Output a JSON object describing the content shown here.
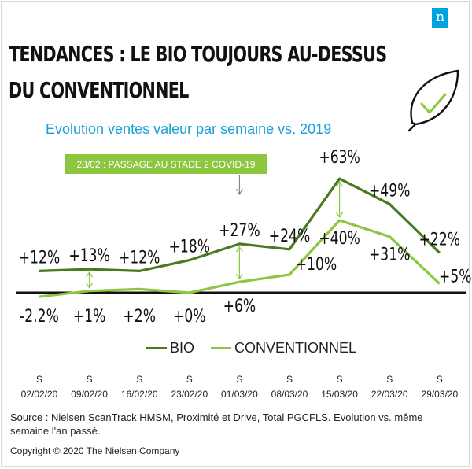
{
  "brand": {
    "logo_text": "n",
    "accent": "#00a3e0",
    "leaf_icon": "leaf-check-icon"
  },
  "title": {
    "line1": "TENDANCES : LE BIO TOUJOURS AU-DESSUS",
    "line2": "DU CONVENTIONNEL"
  },
  "subtitle": "Evolution ventes valeur par semaine vs. 2019",
  "chart_data": {
    "type": "line",
    "title": "TENDANCES : LE BIO TOUJOURS AU-DESSUS DU CONVENTIONNEL",
    "subtitle": "Evolution ventes valeur par semaine vs. 2019",
    "x_prefix": "S",
    "categories": [
      "02/02/20",
      "09/02/20",
      "16/02/20",
      "23/02/20",
      "01/03/20",
      "08/03/20",
      "15/03/20",
      "22/03/20",
      "29/03/20"
    ],
    "series": [
      {
        "name": "BIO",
        "color": "#4a7a1f",
        "values": [
          12,
          13,
          12,
          18,
          27,
          24,
          63,
          49,
          22
        ],
        "labels": [
          "+12%",
          "+13%",
          "+12%",
          "+18%",
          "+27%",
          "+24%",
          "+63%",
          "+49%",
          "+22%"
        ]
      },
      {
        "name": "CONVENTIONNEL",
        "color": "#8dc63f",
        "values": [
          -2.2,
          1,
          2,
          0,
          6,
          10,
          40,
          31,
          5
        ],
        "labels": [
          "-2.2%",
          "+1%",
          "+2%",
          "+0%",
          "+6%",
          "+10%",
          "+40%",
          "+31%",
          "+5%"
        ]
      }
    ],
    "annotation": {
      "text": "28/02 : PASSAGE AU STADE 2 COVID-19",
      "category": "01/03/20",
      "color": "#8dc63f"
    },
    "gap_markers_at": [
      "09/02/20",
      "01/03/20",
      "15/03/20"
    ],
    "ylim": [
      -5,
      65
    ],
    "legend_position": "bottom"
  },
  "footer": {
    "source": "Source : Nielsen ScanTrack HMSM, Proximité et Drive, Total PGCFLS. Evolution vs. même semaine l'an passé.",
    "copyright": "Copyright © 2020 The Nielsen Company"
  }
}
